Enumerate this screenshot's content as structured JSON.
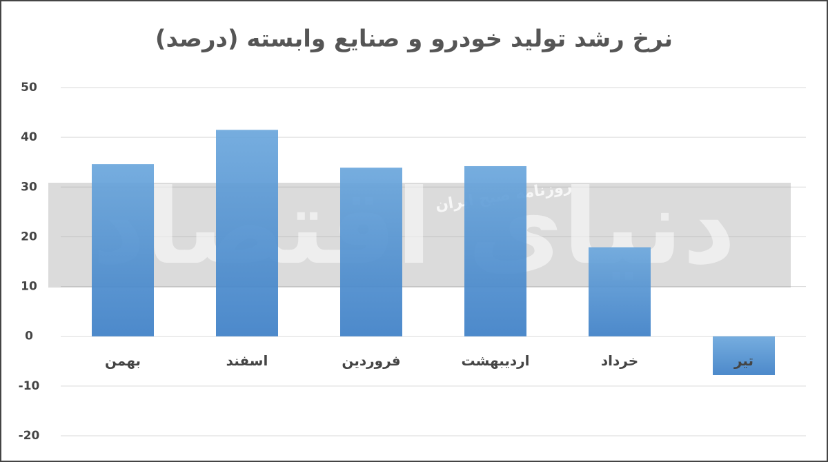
{
  "chart_data": {
    "type": "bar",
    "title": "نرخ رشد تولید خودرو و صنایع وابسته (درصد)",
    "categories": [
      "بهمن",
      "اسفند",
      "فروردین",
      "اردیبهشت",
      "خرداد",
      "تیر"
    ],
    "values": [
      34.6,
      41.5,
      33.9,
      34.2,
      17.9,
      -7.8
    ],
    "color": "#4a8bd0",
    "ylim": [
      -20,
      50
    ],
    "yticks": [
      -20,
      -10,
      0,
      10,
      20,
      30,
      40,
      50
    ],
    "grid": true,
    "watermark": [
      "روزنامه صبح ایران",
      "دنیای اقتصاد"
    ]
  }
}
